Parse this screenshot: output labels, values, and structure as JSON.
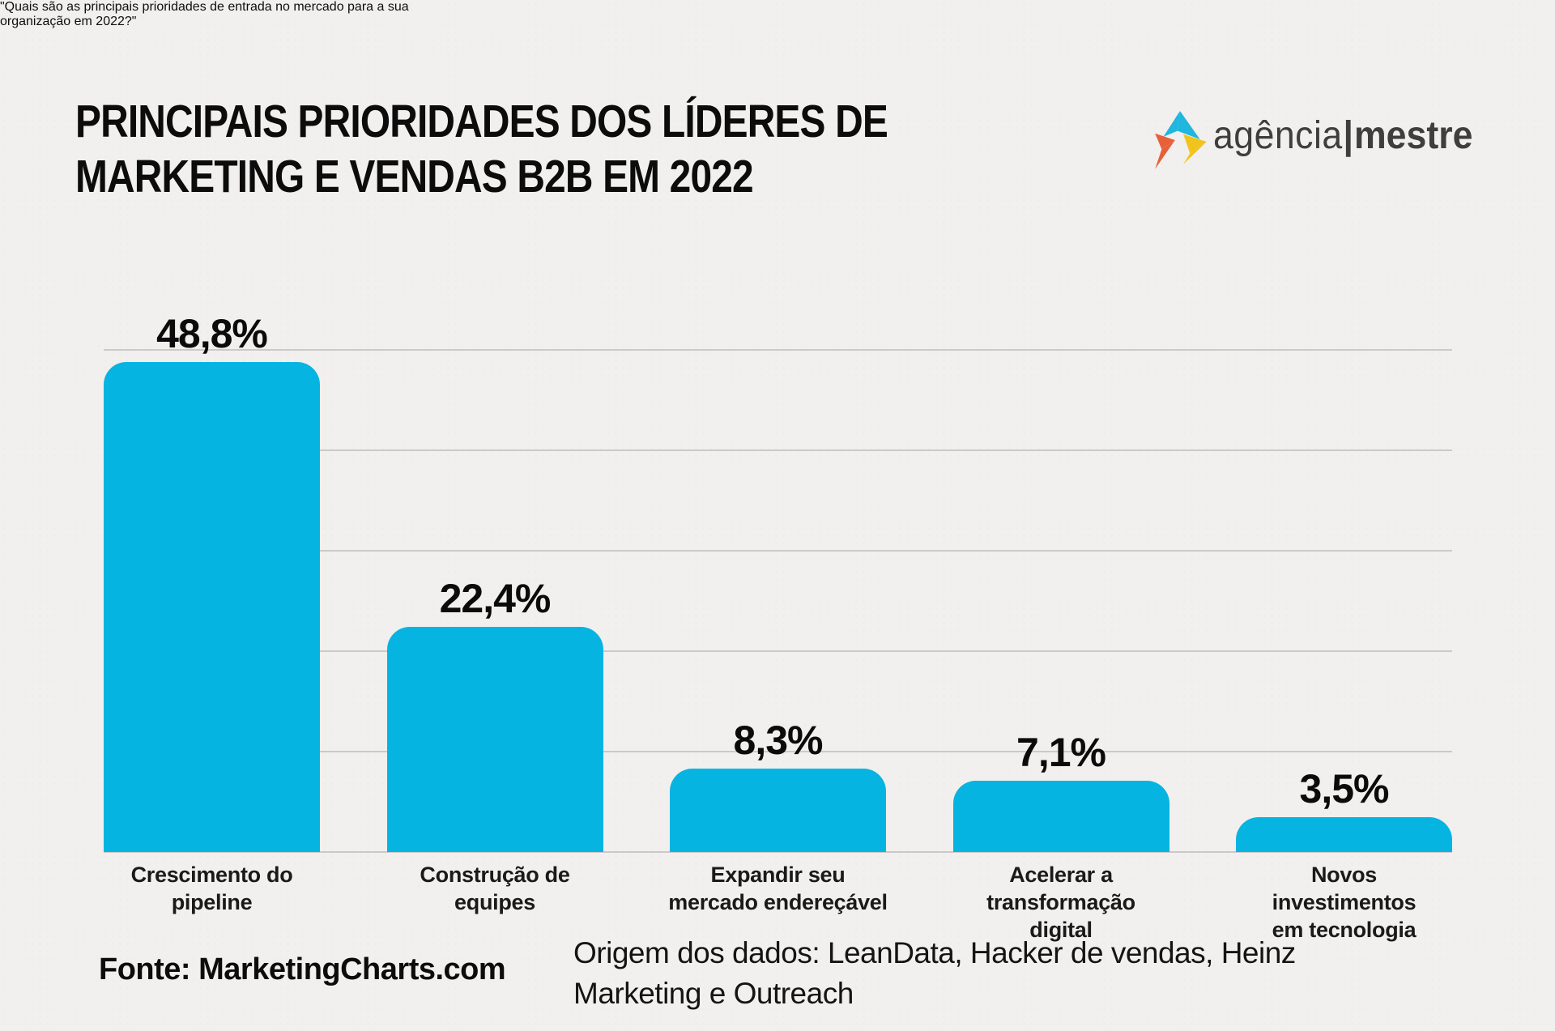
{
  "page": {
    "background": "#f1f0ee"
  },
  "header": {
    "title_line1": "PRINCIPAIS PRIORIDADES DOS LÍDERES DE",
    "title_line2": "MARKETING E VENDAS B2B EM 2022",
    "subtitle_line1": "\"Quais são as principais prioridades de entrada no mercado para a sua",
    "subtitle_line2": "organização em 2022?\""
  },
  "logo": {
    "brand_light": "agência",
    "brand_separator": "|",
    "brand_bold": "mestre",
    "text_color": "#3f3e3d",
    "mark_colors": {
      "cyan": "#1fb6e0",
      "yellow": "#f0c41c",
      "orange": "#e8603a"
    }
  },
  "chart_data": {
    "type": "bar",
    "title": "Principais prioridades dos líderes de marketing e vendas B2B em 2022",
    "question": "Quais são as principais prioridades de entrada no mercado para a sua organização em 2022?",
    "categories": [
      "Crescimento do pipeline",
      "Construção de equipes",
      "Expandir seu mercado endereçável",
      "Acelerar a transformação digital",
      "Novos investimentos em tecnologia"
    ],
    "category_lines": [
      [
        "Crescimento do",
        "pipeline"
      ],
      [
        "Construção de",
        "equipes"
      ],
      [
        "Expandir seu",
        "mercado endereçável"
      ],
      [
        "Acelerar a",
        "transformação",
        "digital"
      ],
      [
        "Novos",
        "investimentos",
        "em tecnologia"
      ]
    ],
    "values": [
      48.8,
      22.4,
      8.3,
      7.1,
      3.5
    ],
    "value_labels": [
      "48,8%",
      "22,4%",
      "8,3%",
      "7,1%",
      "3,5%"
    ],
    "ylim": [
      0,
      50
    ],
    "grid": true,
    "grid_step_percent": 10,
    "legend": "none",
    "bar_color": "#06b4e2",
    "gridline_color": "#cbcac7"
  },
  "footer": {
    "source": "Fonte: MarketingCharts.com",
    "data_origin_line1": "Origem dos dados: LeanData, Hacker de vendas, Heinz",
    "data_origin_line2": "Marketing e Outreach"
  }
}
